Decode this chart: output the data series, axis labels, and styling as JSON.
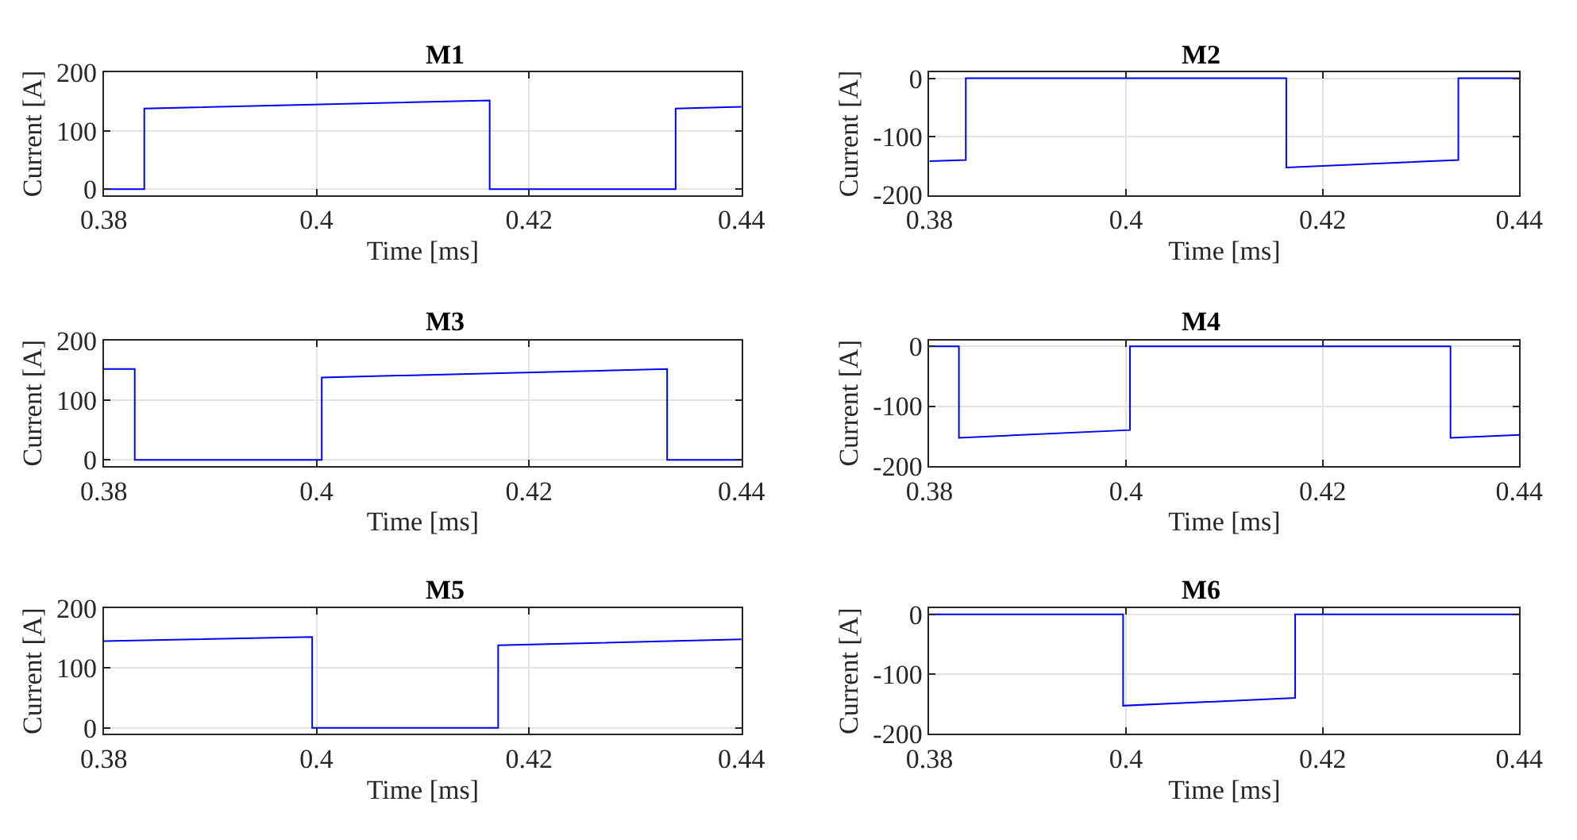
{
  "chart_data": [
    {
      "type": "line",
      "title": "M1",
      "xlabel": "Time [ms]",
      "ylabel": "Current [A]",
      "color": "#0000ff",
      "grid": true,
      "xlim": [
        0.38,
        0.44
      ],
      "xticks": [
        0.38,
        0.4,
        0.42,
        0.44
      ],
      "ylim": [
        -10,
        200
      ],
      "yticks": [
        0,
        100,
        200
      ],
      "x": [
        0.38,
        0.3838,
        0.3838,
        0.4163,
        0.4163,
        0.4338,
        0.4338,
        0.44
      ],
      "values": [
        0,
        0,
        138,
        152,
        0,
        0,
        138,
        141
      ]
    },
    {
      "type": "line",
      "title": "M2",
      "xlabel": "Time [ms]",
      "ylabel": "Current [A]",
      "color": "#0000ff",
      "grid": true,
      "xlim": [
        0.38,
        0.44
      ],
      "xticks": [
        0.38,
        0.4,
        0.42,
        0.44
      ],
      "ylim": [
        -200,
        10
      ],
      "yticks": [
        -200,
        -100,
        0
      ],
      "x": [
        0.38,
        0.3837,
        0.3837,
        0.4163,
        0.4163,
        0.4338,
        0.4338,
        0.44
      ],
      "values": [
        -142,
        -140,
        0,
        0,
        -153,
        -140,
        0,
        0
      ]
    },
    {
      "type": "line",
      "title": "M3",
      "xlabel": "Time [ms]",
      "ylabel": "Current [A]",
      "color": "#0000ff",
      "grid": true,
      "xlim": [
        0.38,
        0.44
      ],
      "xticks": [
        0.38,
        0.4,
        0.42,
        0.44
      ],
      "ylim": [
        -10,
        200
      ],
      "yticks": [
        0,
        100,
        200
      ],
      "x": [
        0.38,
        0.3829,
        0.3829,
        0.4005,
        0.4005,
        0.433,
        0.433,
        0.44
      ],
      "values": [
        152,
        152,
        0,
        0,
        138,
        152,
        0,
        0
      ]
    },
    {
      "type": "line",
      "title": "M4",
      "xlabel": "Time [ms]",
      "ylabel": "Current [A]",
      "color": "#0000ff",
      "grid": true,
      "xlim": [
        0.38,
        0.44
      ],
      "xticks": [
        0.38,
        0.4,
        0.42,
        0.44
      ],
      "ylim": [
        -200,
        10
      ],
      "yticks": [
        -200,
        -100,
        0
      ],
      "x": [
        0.38,
        0.383,
        0.383,
        0.4004,
        0.4004,
        0.433,
        0.433,
        0.44
      ],
      "values": [
        0,
        0,
        -153,
        -140,
        0,
        0,
        -153,
        -148
      ]
    },
    {
      "type": "line",
      "title": "M5",
      "xlabel": "Time [ms]",
      "ylabel": "Current [A]",
      "color": "#0000ff",
      "grid": true,
      "xlim": [
        0.38,
        0.44
      ],
      "xticks": [
        0.38,
        0.4,
        0.42,
        0.44
      ],
      "ylim": [
        -10,
        200
      ],
      "yticks": [
        0,
        100,
        200
      ],
      "x": [
        0.38,
        0.3996,
        0.3996,
        0.4171,
        0.4171,
        0.44
      ],
      "values": [
        145,
        152,
        0,
        0,
        138,
        148
      ]
    },
    {
      "type": "line",
      "title": "M6",
      "xlabel": "Time [ms]",
      "ylabel": "Current [A]",
      "color": "#0000ff",
      "grid": true,
      "xlim": [
        0.38,
        0.44
      ],
      "xticks": [
        0.38,
        0.4,
        0.42,
        0.44
      ],
      "ylim": [
        -200,
        10
      ],
      "yticks": [
        -200,
        -100,
        0
      ],
      "x": [
        0.38,
        0.3997,
        0.3997,
        0.4172,
        0.4172,
        0.44
      ],
      "values": [
        0,
        0,
        -153,
        -140,
        0,
        0
      ]
    }
  ]
}
